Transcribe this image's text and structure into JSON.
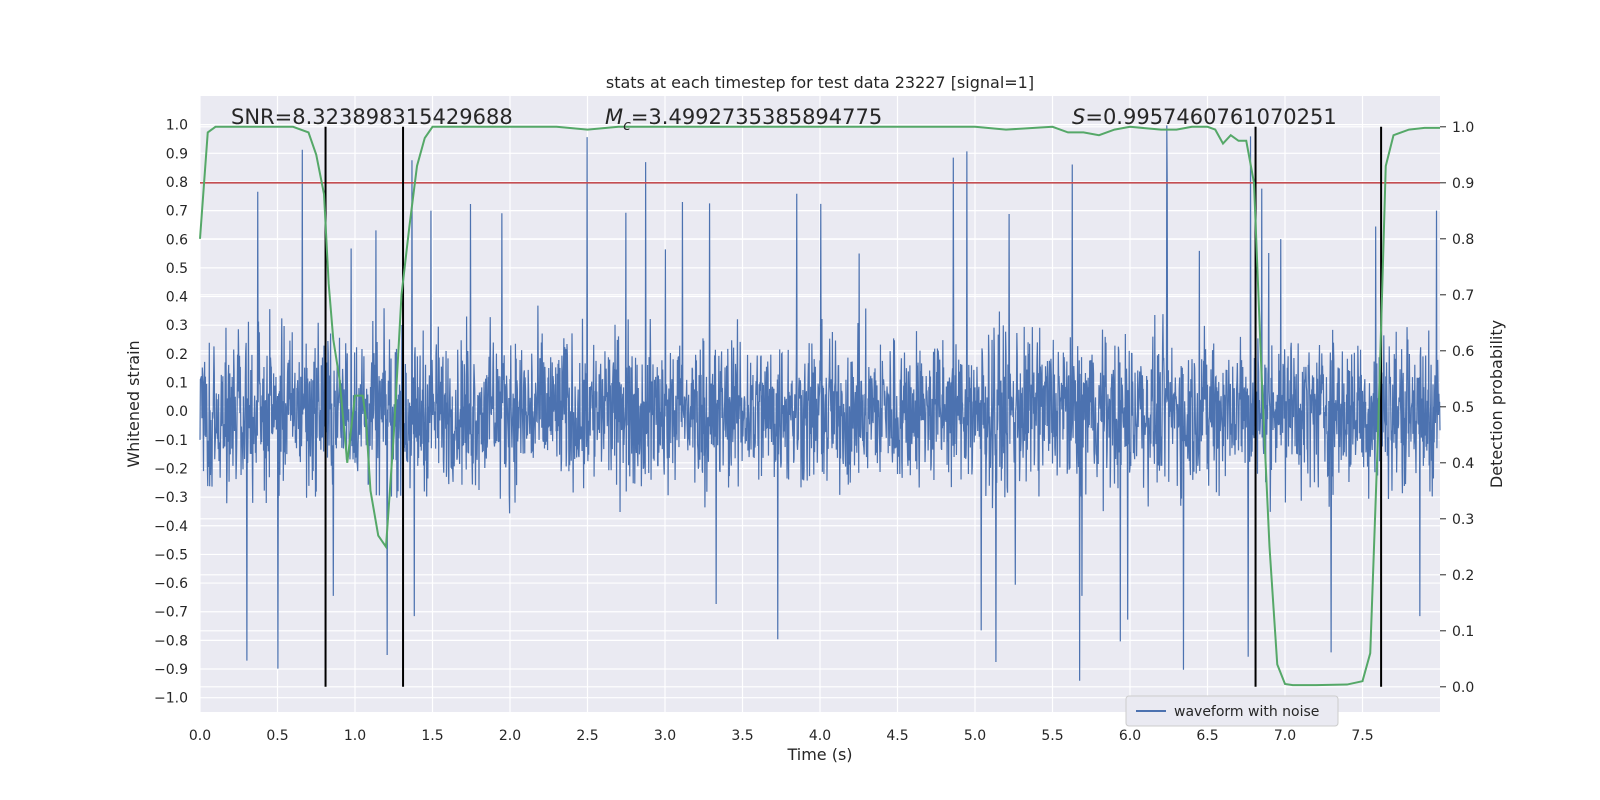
{
  "chart_data": {
    "type": "line",
    "title": "stats at each timestep for test data 23227 [signal=1]",
    "xlabel": "Time (s)",
    "ylabel": "Whitened strain",
    "y2label": "Detection probability",
    "xlim": [
      0.0,
      8.0
    ],
    "ylim": [
      -1.05,
      1.1
    ],
    "y2lim": [
      -0.045,
      1.055
    ],
    "x_ticks": [
      0.0,
      0.5,
      1.0,
      1.5,
      2.0,
      2.5,
      3.0,
      3.5,
      4.0,
      4.5,
      5.0,
      5.5,
      6.0,
      6.5,
      7.0,
      7.5
    ],
    "x_tick_labels": [
      "0.0",
      "0.5",
      "1.0",
      "1.5",
      "2.0",
      "2.5",
      "3.0",
      "3.5",
      "4.0",
      "4.5",
      "5.0",
      "5.5",
      "6.0",
      "6.5",
      "7.0",
      "7.5"
    ],
    "y_ticks": [
      1.0,
      0.9,
      0.8,
      0.7,
      0.6,
      0.5,
      0.4,
      0.3,
      0.2,
      0.1,
      0.0,
      -0.1,
      -0.2,
      -0.3,
      -0.4,
      -0.5,
      -0.6,
      -0.7,
      -0.8,
      -0.9,
      -1.0
    ],
    "y_tick_labels": [
      "1.0",
      "0.9",
      "0.8",
      "0.7",
      "0.6",
      "0.5",
      "0.4",
      "0.3",
      "0.2",
      "0.1",
      "0.0",
      "−0.1",
      "−0.2",
      "−0.3",
      "−0.4",
      "−0.5",
      "−0.6",
      "−0.7",
      "−0.8",
      "−0.9",
      "−1.0"
    ],
    "y2_ticks": [
      1.0,
      0.9,
      0.8,
      0.7,
      0.6,
      0.5,
      0.4,
      0.3,
      0.2,
      0.1,
      0.0
    ],
    "y2_tick_labels": [
      "1.0",
      "0.9",
      "0.8",
      "0.7",
      "0.6",
      "0.5",
      "0.4",
      "0.3",
      "0.2",
      "0.1",
      "0.0"
    ],
    "annotations": {
      "snr": "SNR=8.323898315429688",
      "mc_symbol": "M",
      "mc_sub": "c",
      "mc_value": "=3.4992735385894775",
      "s_symbol": "S",
      "s_value": "=0.9957460761070251"
    },
    "legend": {
      "label": "waveform with noise",
      "position": "lower-right"
    },
    "threshold": {
      "y": 0.9,
      "axis": "right",
      "color": "#c44e52"
    },
    "vlines": {
      "x": [
        0.81,
        1.31,
        6.81,
        7.62
      ],
      "y_range_right": [
        0.0,
        1.0
      ],
      "color": "#000000"
    },
    "series": [
      {
        "name": "waveform with noise",
        "axis": "left",
        "kind": "noise-waveform",
        "color": "#4c72b0",
        "envelope_core": 0.3,
        "peak_max": 1.0,
        "trough_min": -0.95
      },
      {
        "name": "",
        "axis": "right",
        "color": "#55a868",
        "x": [
          0.0,
          0.05,
          0.1,
          0.2,
          0.3,
          0.4,
          0.5,
          0.6,
          0.7,
          0.75,
          0.8,
          0.83,
          0.86,
          0.9,
          0.95,
          1.0,
          1.05,
          1.07,
          1.1,
          1.15,
          1.2,
          1.25,
          1.3,
          1.35,
          1.4,
          1.45,
          1.5,
          1.6,
          1.8,
          2.0,
          2.3,
          2.5,
          2.7,
          3.0,
          3.5,
          4.0,
          4.5,
          5.0,
          5.2,
          5.5,
          5.6,
          5.7,
          5.8,
          5.9,
          6.0,
          6.2,
          6.3,
          6.4,
          6.5,
          6.55,
          6.6,
          6.65,
          6.7,
          6.75,
          6.8,
          6.85,
          6.9,
          6.95,
          7.0,
          7.05,
          7.2,
          7.4,
          7.5,
          7.55,
          7.6,
          7.65,
          7.7,
          7.8,
          7.9,
          8.0
        ],
        "y": [
          0.8,
          0.99,
          1.0,
          1.0,
          1.0,
          1.0,
          1.0,
          1.0,
          0.99,
          0.95,
          0.88,
          0.72,
          0.62,
          0.55,
          0.4,
          0.52,
          0.52,
          0.48,
          0.35,
          0.27,
          0.25,
          0.45,
          0.7,
          0.82,
          0.93,
          0.98,
          1.0,
          1.0,
          1.0,
          1.0,
          1.0,
          0.995,
          1.0,
          1.0,
          1.0,
          1.0,
          1.0,
          1.0,
          0.995,
          1.0,
          0.99,
          0.99,
          0.985,
          0.995,
          1.0,
          0.995,
          0.995,
          1.0,
          1.0,
          0.995,
          0.97,
          0.985,
          0.975,
          0.975,
          0.9,
          0.55,
          0.25,
          0.04,
          0.005,
          0.003,
          0.003,
          0.004,
          0.01,
          0.06,
          0.45,
          0.93,
          0.985,
          0.995,
          0.998,
          0.998
        ]
      }
    ]
  }
}
